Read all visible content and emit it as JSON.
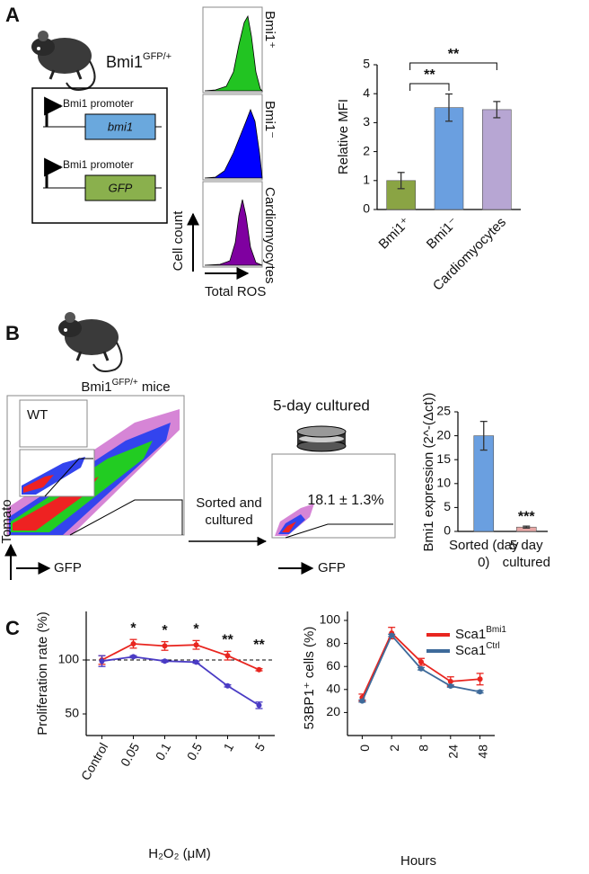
{
  "panels": [
    "A",
    "B",
    "C"
  ],
  "panel_a": {
    "mouse_label": {
      "text": "Bmi1",
      "sup": "GFP/+"
    },
    "constructs": [
      {
        "promoter": "Bmi1 promoter",
        "gene": "bmi1"
      },
      {
        "promoter": "Bmi1 promoter",
        "gene": "GFP"
      }
    ],
    "histograms": [
      "Bmi1⁺",
      "Bmi1⁻",
      "Cardiomyocytes"
    ],
    "y_axis_label": "Cell count",
    "x_axis_label": "Total ROS"
  },
  "panel_b": {
    "mouse_label": {
      "text": "Bmi1",
      "sup": "GFP/+",
      "suffix": " mice"
    },
    "gate_label": "WT",
    "y_axis_label": "Tomato",
    "x_axis_label": "GFP",
    "arrow_label": "Sorted and cultured",
    "culture_label": "5-day cultured",
    "gate_percent": "18.1 ± 1.3%",
    "x_axis_label_2": "GFP"
  },
  "chart_data": [
    {
      "type": "bar",
      "ylabel": "Relative MFI",
      "categories": [
        "Bmi1⁺",
        "Bmi1⁻",
        "Cardiomyocytes"
      ],
      "values": [
        1.0,
        3.52,
        3.45
      ],
      "errors": [
        0.28,
        0.47,
        0.28
      ],
      "colors": [
        "#8aa444",
        "#6a9fe0",
        "#b7a6d3"
      ],
      "ylim": [
        0,
        5
      ],
      "yticks": [
        0,
        1,
        2,
        3,
        4,
        5
      ],
      "annotations": [
        "**",
        "**"
      ]
    },
    {
      "type": "bar",
      "ylabel": "Bmi1 expression (2^-(Δct))",
      "categories": [
        "Sorted (day 0)",
        "5 day cultured"
      ],
      "values": [
        20,
        0.9
      ],
      "errors": [
        3,
        0.2
      ],
      "colors": [
        "#6a9fe0",
        "#e8a8a6"
      ],
      "ylim": [
        0,
        25
      ],
      "yticks": [
        0,
        5,
        10,
        15,
        20,
        25
      ],
      "annotations": [
        "***"
      ]
    },
    {
      "type": "line",
      "xlabel": "H₂O₂ (μM)",
      "ylabel": "Proliferation rate (%)",
      "categories": [
        "Control",
        "0.05",
        "0.1",
        "0.5",
        "1",
        "5"
      ],
      "series": [
        {
          "color": "#e8251f",
          "values": [
            100,
            115,
            113,
            114,
            104,
            91
          ],
          "errors": [
            4,
            4,
            4,
            4,
            4,
            1
          ]
        },
        {
          "color": "#4a3bc4",
          "values": [
            99,
            103,
            99,
            98,
            76,
            58
          ],
          "errors": [
            5,
            1,
            1,
            1,
            1,
            3
          ]
        }
      ],
      "ylim": [
        30,
        145
      ],
      "yticks": [
        50,
        100
      ],
      "reference_line": 100,
      "annotations": [
        "*",
        "*",
        "*",
        "**",
        "**"
      ]
    },
    {
      "type": "line",
      "xlabel": "Hours",
      "ylabel": "53BP1⁺ cells (%)",
      "categories": [
        "0",
        "2",
        "8",
        "24",
        "48"
      ],
      "series": [
        {
          "name": "Sca1",
          "name_sup": "Bmi1",
          "color": "#e8251f",
          "values": [
            33,
            89,
            64,
            47,
            49
          ],
          "errors": [
            3,
            5,
            3,
            4,
            5
          ]
        },
        {
          "name": "Sca1",
          "name_sup": "Ctrl",
          "color": "#3e6a9a",
          "values": [
            30,
            87,
            58,
            43,
            38
          ],
          "errors": [
            1,
            1,
            1,
            1,
            1
          ]
        }
      ],
      "ylim": [
        0,
        100
      ],
      "yticks": [
        20,
        40,
        60,
        80,
        100
      ]
    }
  ]
}
